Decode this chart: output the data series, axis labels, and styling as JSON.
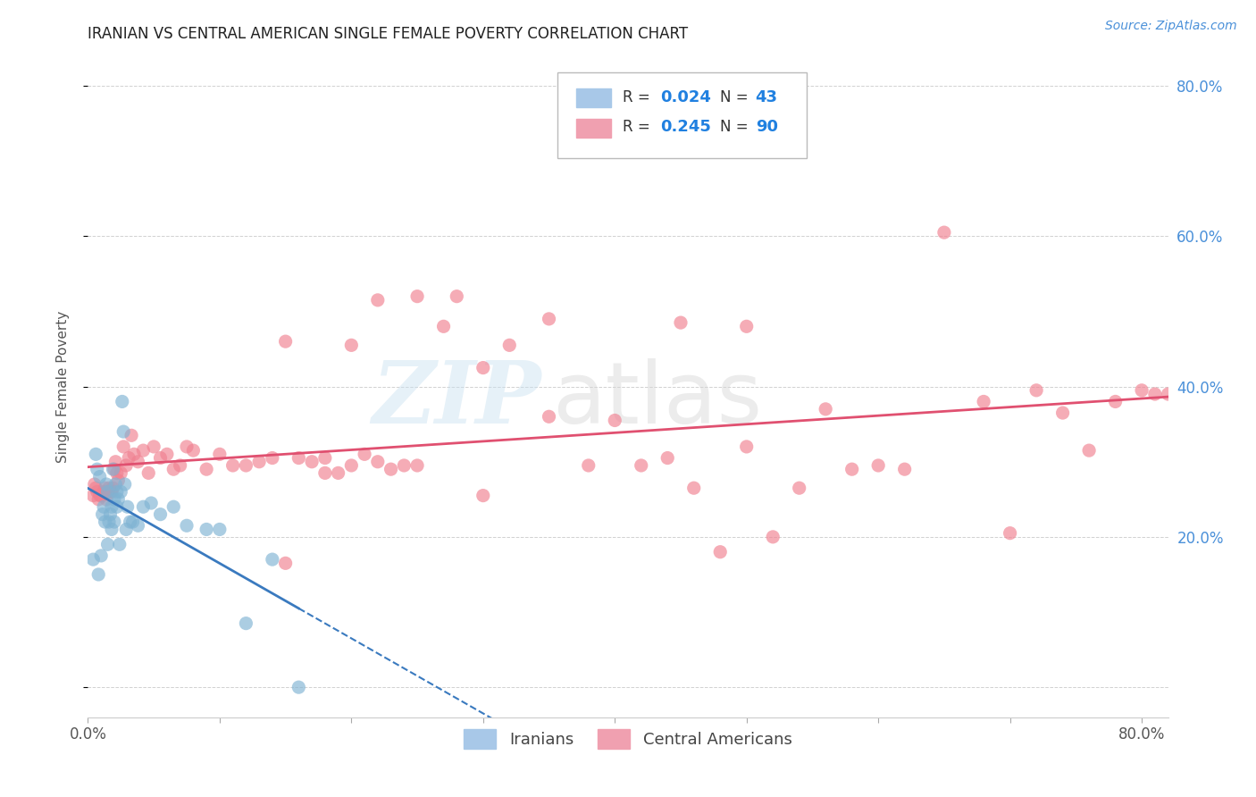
{
  "title": "IRANIAN VS CENTRAL AMERICAN SINGLE FEMALE POVERTY CORRELATION CHART",
  "source": "Source: ZipAtlas.com",
  "ylabel": "Single Female Poverty",
  "iranians_color": "#7fb3d3",
  "central_americans_color": "#f08090",
  "iranian_line_color": "#3a7abf",
  "central_american_line_color": "#e05070",
  "background_color": "#ffffff",
  "grid_color": "#cccccc",
  "xlim": [
    0.0,
    0.82
  ],
  "ylim": [
    -0.04,
    0.84
  ],
  "x_ticks": [
    0.0,
    0.1,
    0.2,
    0.3,
    0.4,
    0.5,
    0.6,
    0.7,
    0.8
  ],
  "y_ticks": [
    0.0,
    0.2,
    0.4,
    0.6,
    0.8
  ],
  "iranians_x": [
    0.004,
    0.006,
    0.007,
    0.008,
    0.009,
    0.01,
    0.011,
    0.012,
    0.013,
    0.014,
    0.015,
    0.015,
    0.016,
    0.017,
    0.018,
    0.018,
    0.019,
    0.02,
    0.02,
    0.021,
    0.022,
    0.022,
    0.023,
    0.024,
    0.025,
    0.026,
    0.027,
    0.028,
    0.029,
    0.03,
    0.032,
    0.034,
    0.038,
    0.042,
    0.048,
    0.055,
    0.065,
    0.075,
    0.09,
    0.1,
    0.12,
    0.14,
    0.16
  ],
  "iranians_y": [
    0.17,
    0.31,
    0.29,
    0.15,
    0.28,
    0.175,
    0.23,
    0.24,
    0.22,
    0.27,
    0.26,
    0.19,
    0.22,
    0.23,
    0.24,
    0.21,
    0.29,
    0.25,
    0.22,
    0.27,
    0.26,
    0.24,
    0.25,
    0.19,
    0.26,
    0.38,
    0.34,
    0.27,
    0.21,
    0.24,
    0.22,
    0.22,
    0.215,
    0.24,
    0.245,
    0.23,
    0.24,
    0.215,
    0.21,
    0.21,
    0.085,
    0.17,
    0.0
  ],
  "central_americans_x": [
    0.004,
    0.005,
    0.006,
    0.007,
    0.008,
    0.009,
    0.01,
    0.011,
    0.012,
    0.013,
    0.014,
    0.015,
    0.016,
    0.017,
    0.018,
    0.019,
    0.02,
    0.021,
    0.022,
    0.023,
    0.025,
    0.027,
    0.029,
    0.031,
    0.033,
    0.035,
    0.038,
    0.042,
    0.046,
    0.05,
    0.055,
    0.06,
    0.065,
    0.07,
    0.075,
    0.08,
    0.09,
    0.1,
    0.11,
    0.12,
    0.13,
    0.14,
    0.15,
    0.16,
    0.17,
    0.18,
    0.19,
    0.2,
    0.21,
    0.22,
    0.23,
    0.25,
    0.27,
    0.28,
    0.3,
    0.32,
    0.35,
    0.38,
    0.4,
    0.42,
    0.44,
    0.46,
    0.48,
    0.5,
    0.52,
    0.54,
    0.56,
    0.58,
    0.6,
    0.62,
    0.65,
    0.68,
    0.7,
    0.72,
    0.74,
    0.76,
    0.78,
    0.8,
    0.81,
    0.82,
    0.25,
    0.3,
    0.35,
    0.15,
    0.18,
    0.2,
    0.22,
    0.24,
    0.45,
    0.5
  ],
  "central_americans_y": [
    0.255,
    0.27,
    0.265,
    0.26,
    0.25,
    0.255,
    0.255,
    0.255,
    0.26,
    0.265,
    0.25,
    0.26,
    0.265,
    0.26,
    0.26,
    0.265,
    0.29,
    0.3,
    0.285,
    0.275,
    0.285,
    0.32,
    0.295,
    0.305,
    0.335,
    0.31,
    0.3,
    0.315,
    0.285,
    0.32,
    0.305,
    0.31,
    0.29,
    0.295,
    0.32,
    0.315,
    0.29,
    0.31,
    0.295,
    0.295,
    0.3,
    0.305,
    0.165,
    0.305,
    0.3,
    0.305,
    0.285,
    0.295,
    0.31,
    0.3,
    0.29,
    0.295,
    0.48,
    0.52,
    0.255,
    0.455,
    0.36,
    0.295,
    0.355,
    0.295,
    0.305,
    0.265,
    0.18,
    0.32,
    0.2,
    0.265,
    0.37,
    0.29,
    0.295,
    0.29,
    0.605,
    0.38,
    0.205,
    0.395,
    0.365,
    0.315,
    0.38,
    0.395,
    0.39,
    0.39,
    0.52,
    0.425,
    0.49,
    0.46,
    0.285,
    0.455,
    0.515,
    0.295,
    0.485,
    0.48
  ]
}
